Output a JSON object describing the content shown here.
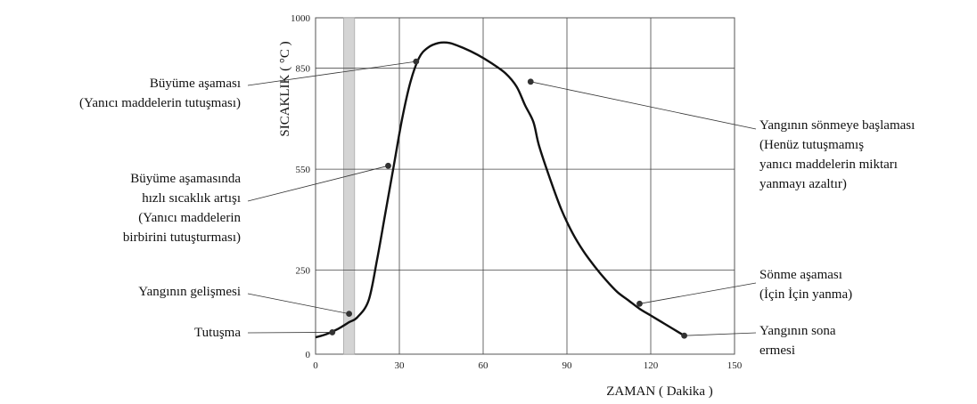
{
  "chart_data": {
    "type": "line",
    "xlabel": "ZAMAN ( Dakika )",
    "ylabel": "SICAKLIK ( °C )",
    "xlim": [
      0,
      150
    ],
    "ylim": [
      0,
      1000
    ],
    "x_ticks": [
      "0",
      "30",
      "60",
      "90",
      "120",
      "150"
    ],
    "y_ticks": [
      "0",
      "250",
      "550",
      "850",
      "1000"
    ],
    "x_tick_values": [
      0,
      30,
      60,
      90,
      120,
      150
    ],
    "y_tick_values": [
      0,
      250,
      550,
      850,
      1000
    ],
    "grid": true,
    "highlight_band": {
      "x_start": 10,
      "x_end": 14
    },
    "series": [
      {
        "x": [
          0,
          4,
          8,
          12,
          15,
          19,
          22,
          25,
          28,
          31,
          34,
          37,
          40,
          44,
          48,
          53,
          58,
          63,
          68,
          72,
          75,
          78,
          80,
          84,
          88,
          92,
          96,
          100,
          104,
          108,
          112,
          116,
          120,
          124,
          128,
          132
        ],
        "y": [
          50,
          60,
          75,
          95,
          110,
          160,
          280,
          420,
          560,
          700,
          810,
          880,
          910,
          925,
          925,
          910,
          890,
          865,
          835,
          795,
          740,
          690,
          620,
          520,
          430,
          360,
          305,
          260,
          220,
          185,
          160,
          135,
          115,
          95,
          75,
          55
        ]
      }
    ],
    "annotations": [
      {
        "lines": [
          "Büyüme aşaması",
          "(Yanıcı maddelerin tutuşması)"
        ],
        "x": 36,
        "y": 870
      },
      {
        "lines": [
          "Büyüme aşamasında",
          "hızlı sıcaklık artışı",
          "(Yanıcı maddelerin",
          "birbirini tutuşturması)"
        ],
        "x": 26,
        "y": 560
      },
      {
        "lines": [
          "Yangının gelişmesi"
        ],
        "x": 12,
        "y": 120
      },
      {
        "lines": [
          "Tutuşma"
        ],
        "x": 6,
        "y": 65
      },
      {
        "lines": [
          "Yangının sönmeye başlaması",
          "(Henüz tutuşmamış",
          "yanıcı maddelerin miktarı",
          "yanmayı azaltır)"
        ],
        "x": 77,
        "y": 810
      },
      {
        "lines": [
          "Sönme aşaması",
          "(İçin İçin yanma)"
        ],
        "x": 116,
        "y": 150
      },
      {
        "lines": [
          "Yangının sona",
          "ermesi"
        ],
        "x": 132,
        "y": 55
      }
    ]
  }
}
